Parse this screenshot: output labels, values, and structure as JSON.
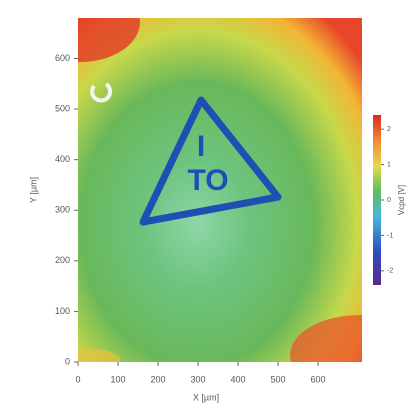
{
  "chart_data": {
    "type": "heatmap",
    "x_label": "X [µm]",
    "y_label": "Y [µm]",
    "colorbar_label": "Vcpd [V]",
    "annotations": [
      "I",
      "TO"
    ],
    "xlim": [
      0,
      710
    ],
    "xticks": [
      0,
      100,
      200,
      300,
      400,
      500,
      600
    ],
    "ylim": [
      0,
      680
    ],
    "yticks": [
      0,
      100,
      200,
      300,
      400,
      500,
      600
    ],
    "clim": [
      -2.4,
      2.4
    ],
    "cticks": [
      -2,
      -1,
      0,
      1,
      2
    ]
  }
}
